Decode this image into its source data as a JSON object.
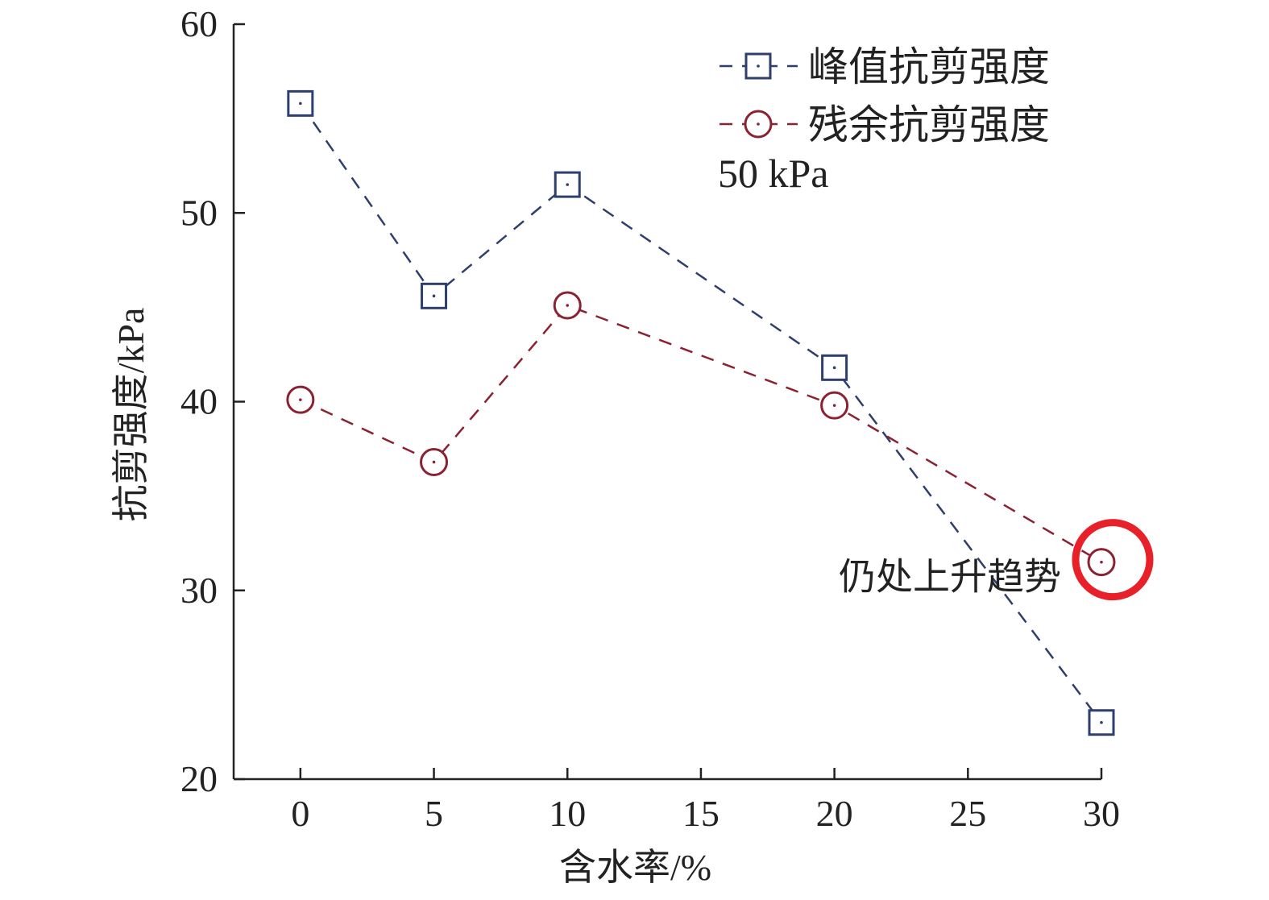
{
  "chart_data": {
    "type": "line",
    "xlabel": "含水率/%",
    "ylabel": "抗剪强度/kPa",
    "xlim": [
      -2.5,
      30
    ],
    "ylim": [
      20,
      60
    ],
    "x_ticks": [
      0,
      5,
      10,
      15,
      20,
      25,
      30
    ],
    "x_tick_labels": [
      "0",
      "5",
      "10",
      "15",
      "20",
      "25",
      "30"
    ],
    "y_ticks": [
      20,
      30,
      40,
      50,
      60
    ],
    "y_tick_labels": [
      "20",
      "30",
      "40",
      "50",
      "60"
    ],
    "grid": false,
    "legend_position": "top-right",
    "legend_note": "50 kPa",
    "series": [
      {
        "name": "峰值抗剪强度",
        "marker": "square",
        "color": "#2e3f6e",
        "x": [
          0,
          5,
          10,
          20,
          30
        ],
        "y": [
          55.8,
          45.6,
          51.5,
          41.8,
          23.0
        ]
      },
      {
        "name": "残余抗剪强度",
        "marker": "circle",
        "color": "#8b2232",
        "x": [
          0,
          5,
          10,
          20,
          30
        ],
        "y": [
          40.1,
          36.8,
          45.1,
          39.8,
          31.5
        ]
      }
    ],
    "annotation": {
      "text": "仍处上升趋势",
      "series": 1,
      "point_index": 4,
      "highlight_color": "#e8202a"
    }
  }
}
